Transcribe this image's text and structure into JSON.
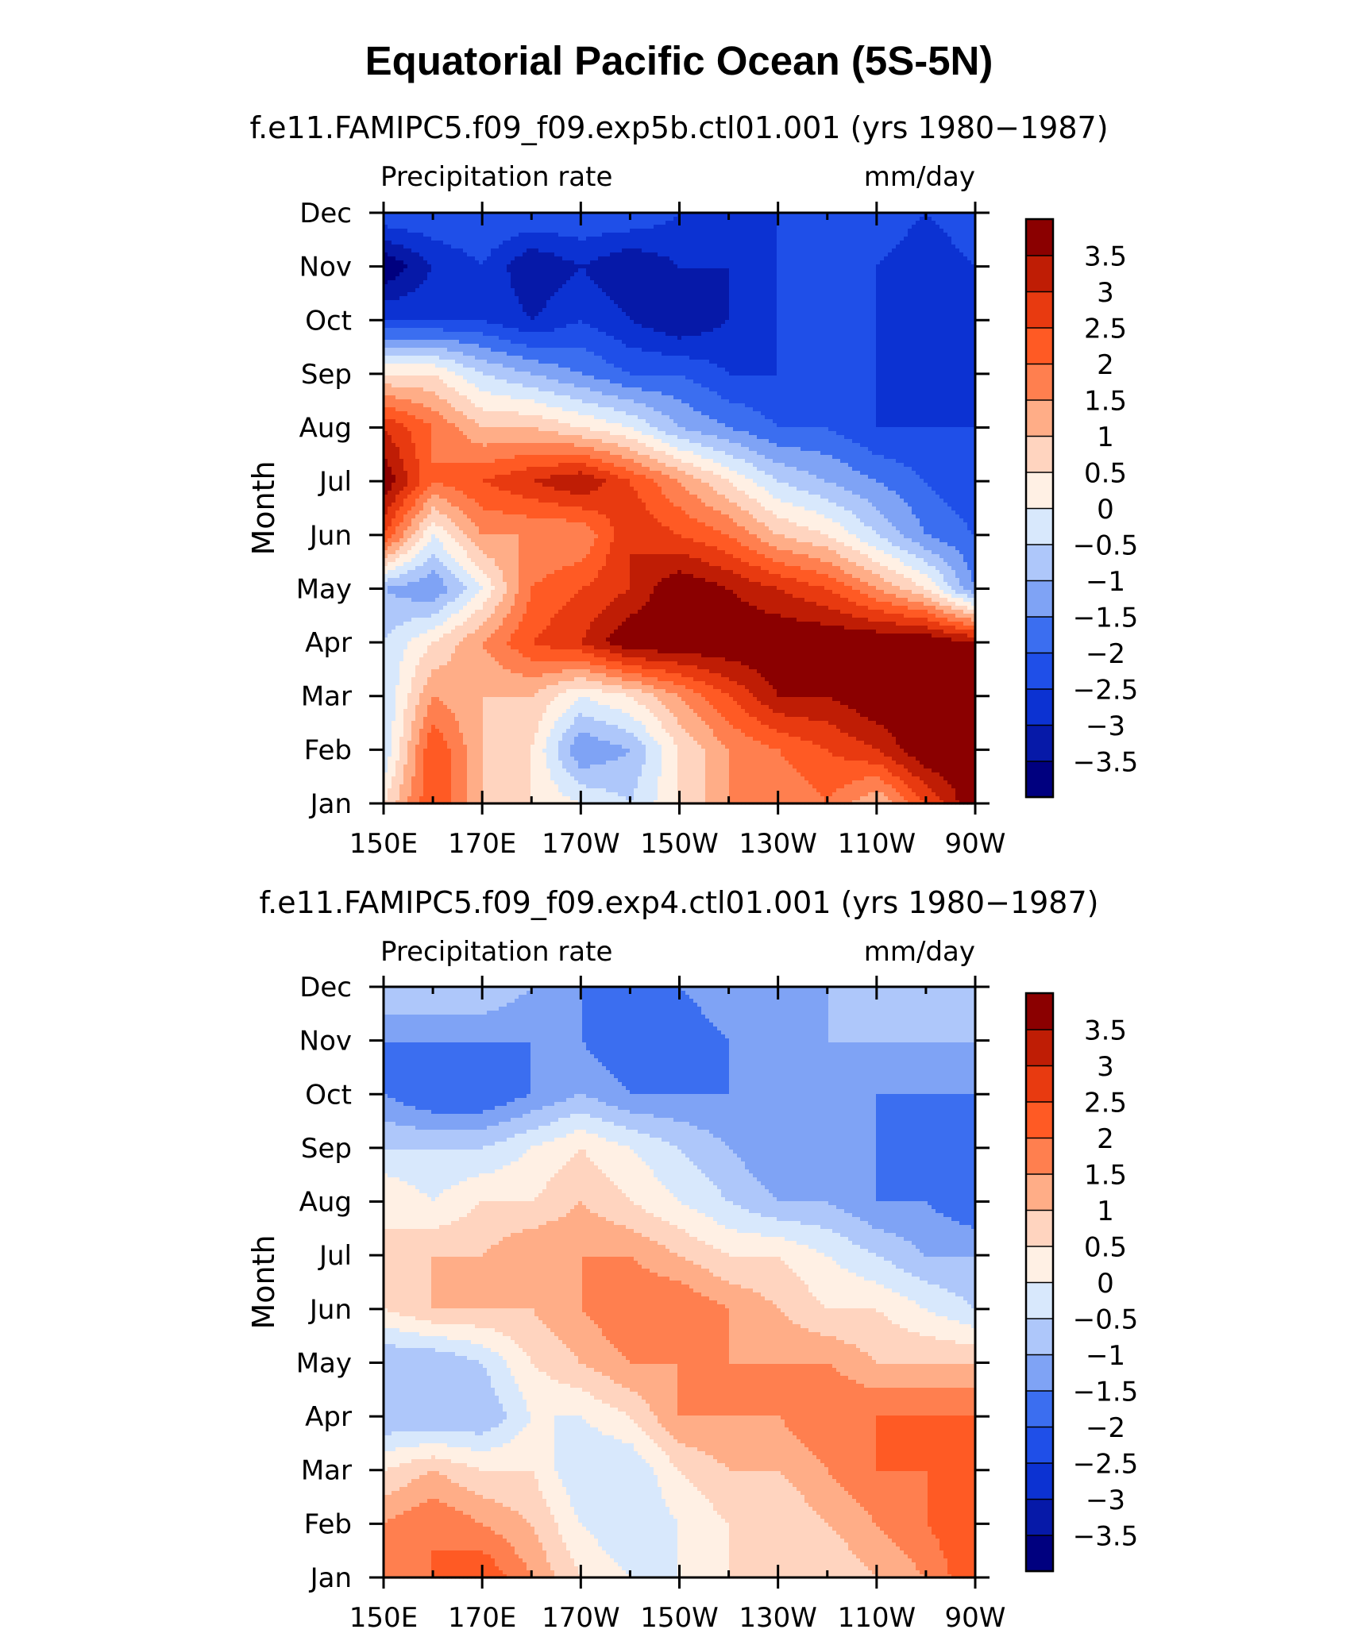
{
  "title": "Equatorial Pacific Ocean (5S-5N)",
  "palette": [
    "#00007f",
    "#0619a8",
    "#0c32d2",
    "#1f4fe8",
    "#3b6ef0",
    "#7fa3f5",
    "#aec7fa",
    "#d8e8fc",
    "#fff0e4",
    "#ffd4bf",
    "#ffad87",
    "#ff7f4f",
    "#ff5a24",
    "#e83a10",
    "#bf1d05",
    "#8b0000"
  ],
  "chart_data": [
    {
      "type": "heatmap",
      "subtitle": "f.e11.FAMIPC5.f09_f09.exp5b.ctl01.001 (yrs 1980−1987)",
      "left_label": "Precipitation  rate",
      "right_label": "mm/day",
      "ylabel": "Month",
      "xticks": [
        "150E",
        "170E",
        "170W",
        "150W",
        "130W",
        "110W",
        "90W"
      ],
      "yticks": [
        "Jan",
        "Feb",
        "Mar",
        "Apr",
        "May",
        "Jun",
        "Jul",
        "Aug",
        "Sep",
        "Oct",
        "Nov",
        "Dec"
      ],
      "colorbar_labels": [
        "3.5",
        "3",
        "2.5",
        "2",
        "1.5",
        "1",
        "0.5",
        "0",
        "−0.5",
        "−1",
        "−1.5",
        "−2",
        "−2.5",
        "−3",
        "−3.5"
      ],
      "levels": [
        -3.5,
        -3,
        -2.5,
        -2,
        -1.5,
        -1,
        -0.5,
        0,
        0.5,
        1,
        1.5,
        2,
        2.5,
        3,
        3.5
      ],
      "x": [
        "150E",
        "160E",
        "170E",
        "180",
        "170W",
        "160W",
        "150W",
        "140W",
        "130W",
        "120W",
        "110W",
        "100W",
        "90W"
      ],
      "y": [
        "Jan",
        "Feb",
        "Mar",
        "Apr",
        "May",
        "Jun",
        "Jul",
        "Aug",
        "Sep",
        "Oct",
        "Nov",
        "Dec"
      ],
      "z": [
        [
          0.5,
          2.5,
          1.0,
          0.5,
          0.0,
          -0.5,
          0.5,
          1.5,
          1.5,
          2.0,
          1.0,
          2.5,
          4.0
        ],
        [
          -0.5,
          2.5,
          1.0,
          0.5,
          -1.5,
          -1.0,
          0.5,
          1.5,
          2.0,
          2.5,
          3.0,
          4.0,
          4.0
        ],
        [
          -0.5,
          1.5,
          1.0,
          1.0,
          0.0,
          0.5,
          1.5,
          2.5,
          3.5,
          3.5,
          4.0,
          4.0,
          4.0
        ],
        [
          -0.5,
          0.5,
          1.5,
          2.5,
          3.0,
          4.0,
          4.0,
          4.0,
          4.0,
          4.0,
          4.0,
          4.0,
          3.5
        ],
        [
          -1.0,
          -1.5,
          0.0,
          2.0,
          2.5,
          3.0,
          4.0,
          3.5,
          3.0,
          2.5,
          1.5,
          0.5,
          -1.5
        ],
        [
          2.5,
          0.0,
          1.5,
          1.5,
          1.5,
          3.0,
          2.5,
          2.0,
          1.0,
          0.5,
          -0.5,
          -1.5,
          -2.0
        ],
        [
          4.0,
          2.0,
          2.5,
          3.0,
          3.5,
          2.5,
          1.5,
          0.5,
          -0.5,
          -1.0,
          -1.5,
          -2.0,
          -2.5
        ],
        [
          3.0,
          2.0,
          1.0,
          1.0,
          0.5,
          0.0,
          -1.0,
          -1.5,
          -2.0,
          -2.0,
          -2.5,
          -2.5,
          -2.5
        ],
        [
          0.5,
          0.5,
          -0.5,
          -1.0,
          -1.5,
          -2.0,
          -2.0,
          -2.5,
          -2.5,
          -2.5,
          -2.5,
          -3.0,
          -2.5
        ],
        [
          -2.5,
          -2.5,
          -2.5,
          -3.0,
          -2.5,
          -3.0,
          -3.5,
          -3.0,
          -2.5,
          -2.5,
          -2.5,
          -3.0,
          -3.0
        ],
        [
          -4.0,
          -3.0,
          -2.5,
          -3.5,
          -3.0,
          -3.5,
          -3.0,
          -3.0,
          -2.5,
          -2.5,
          -2.5,
          -3.0,
          -2.5
        ],
        [
          -2.0,
          -2.0,
          -2.0,
          -2.0,
          -2.0,
          -2.0,
          -2.5,
          -2.5,
          -2.5,
          -2.0,
          -2.0,
          -2.5,
          -2.0
        ]
      ]
    },
    {
      "type": "heatmap",
      "subtitle": "f.e11.FAMIPC5.f09_f09.exp4.ctl01.001 (yrs 1980−1987)",
      "left_label": "Precipitation  rate",
      "right_label": "mm/day",
      "ylabel": "Month",
      "xticks": [
        "150E",
        "170E",
        "170W",
        "150W",
        "130W",
        "110W",
        "90W"
      ],
      "yticks": [
        "Jan",
        "Feb",
        "Mar",
        "Apr",
        "May",
        "Jun",
        "Jul",
        "Aug",
        "Sep",
        "Oct",
        "Nov",
        "Dec"
      ],
      "colorbar_labels": [
        "3.5",
        "3",
        "2.5",
        "2",
        "1.5",
        "1",
        "0.5",
        "0",
        "−0.5",
        "−1",
        "−1.5",
        "−2",
        "−2.5",
        "−3",
        "−3.5"
      ],
      "levels": [
        -3.5,
        -3,
        -2.5,
        -2,
        -1.5,
        -1,
        -0.5,
        0,
        0.5,
        1,
        1.5,
        2,
        2.5,
        3,
        3.5
      ],
      "x": [
        "150E",
        "160E",
        "170E",
        "180",
        "170W",
        "160W",
        "150W",
        "140W",
        "130W",
        "120W",
        "110W",
        "100W",
        "90W"
      ],
      "y": [
        "Jan",
        "Feb",
        "Mar",
        "Apr",
        "May",
        "Jun",
        "Jul",
        "Aug",
        "Sep",
        "Oct",
        "Nov",
        "Dec"
      ],
      "z": [
        [
          1.5,
          2.0,
          2.5,
          1.5,
          0.5,
          0.0,
          0.0,
          0.5,
          0.5,
          0.5,
          1.0,
          1.5,
          2.5
        ],
        [
          1.5,
          2.0,
          1.5,
          1.0,
          0.0,
          -0.5,
          0.0,
          0.5,
          0.5,
          1.0,
          1.5,
          2.0,
          2.5
        ],
        [
          0.5,
          1.0,
          0.5,
          0.5,
          -0.5,
          -0.5,
          0.5,
          1.0,
          1.0,
          1.5,
          2.0,
          2.0,
          2.5
        ],
        [
          -1.0,
          -1.0,
          -1.0,
          0.0,
          0.0,
          0.5,
          1.5,
          1.5,
          1.5,
          2.0,
          2.0,
          2.0,
          2.0
        ],
        [
          -1.0,
          -1.0,
          -0.5,
          0.5,
          1.0,
          1.5,
          1.5,
          1.5,
          1.5,
          1.5,
          1.0,
          1.0,
          1.0
        ],
        [
          0.5,
          1.0,
          1.0,
          1.0,
          1.5,
          2.0,
          2.0,
          1.5,
          1.0,
          0.5,
          0.5,
          0.0,
          -0.5
        ],
        [
          0.5,
          1.0,
          1.0,
          1.5,
          1.5,
          1.5,
          1.0,
          0.5,
          0.5,
          0.0,
          -0.5,
          -1.0,
          -1.0
        ],
        [
          0.5,
          0.0,
          0.5,
          0.5,
          1.0,
          0.5,
          0.0,
          -0.5,
          -1.0,
          -1.0,
          -1.5,
          -1.5,
          -2.0
        ],
        [
          -0.5,
          -0.5,
          -0.5,
          0.0,
          0.5,
          0.0,
          -0.5,
          -1.0,
          -1.5,
          -1.5,
          -1.5,
          -2.0,
          -2.0
        ],
        [
          -1.5,
          -2.0,
          -2.0,
          -1.5,
          -1.0,
          -1.5,
          -1.5,
          -1.5,
          -1.5,
          -1.5,
          -1.5,
          -1.5,
          -1.5
        ],
        [
          -1.5,
          -1.5,
          -1.5,
          -1.5,
          -1.5,
          -2.0,
          -2.0,
          -1.5,
          -1.5,
          -1.0,
          -1.0,
          -1.0,
          -1.0
        ],
        [
          -0.5,
          -0.5,
          -0.5,
          -1.0,
          -1.5,
          -1.5,
          -1.5,
          -1.0,
          -1.0,
          -1.0,
          -0.5,
          -0.5,
          -0.5
        ]
      ]
    }
  ]
}
